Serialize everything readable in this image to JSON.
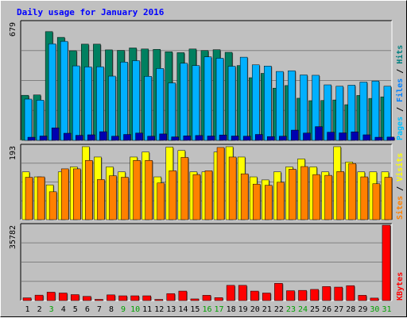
{
  "chart_data": {
    "type": "bar",
    "title": "Daily usage for January 2016",
    "categories": [
      "1",
      "2",
      "3",
      "4",
      "5",
      "6",
      "7",
      "8",
      "9",
      "10",
      "11",
      "12",
      "13",
      "14",
      "15",
      "16",
      "17",
      "18",
      "19",
      "20",
      "21",
      "22",
      "23",
      "24",
      "25",
      "26",
      "27",
      "28",
      "29",
      "30",
      "31"
    ],
    "weekend_days": [
      "3",
      "9",
      "10",
      "16",
      "17",
      "23",
      "24",
      "30",
      "31"
    ],
    "panels": [
      {
        "id": "hits",
        "ymax": 679,
        "ymax_label": "679",
        "legend": [
          {
            "text": "Pages",
            "color": "#00C0FF"
          },
          {
            "text": " / ",
            "color": "#000000"
          },
          {
            "text": "Files",
            "color": "#0080FF"
          },
          {
            "text": " / ",
            "color": "#000000"
          },
          {
            "text": "Hits",
            "color": "#008080"
          }
        ],
        "series": [
          {
            "name": "Hits",
            "color": "#008060",
            "values": [
              259,
              261,
              625,
              592,
              515,
              553,
              553,
              520,
              517,
              531,
              525,
              523,
              509,
              504,
              525,
              516,
              521,
              506,
              430,
              360,
              385,
              300,
              315,
              242,
              228,
              229,
              232,
              205,
              258,
              241,
              250
            ]
          },
          {
            "name": "Files",
            "color": "#00B0FF",
            "values": [
              237,
              231,
              555,
              569,
              428,
              422,
              423,
              369,
              450,
              458,
              368,
              413,
              330,
              443,
              430,
              480,
              472,
              426,
              478,
              434,
              427,
              396,
              400,
              376,
              374,
              319,
              311,
              317,
              335,
              341,
              311
            ]
          },
          {
            "name": "Pages",
            "color": "#0000B0",
            "values": [
              18,
              25,
              72,
              41,
              29,
              32,
              50,
              24,
              34,
              42,
              24,
              37,
              20,
              26,
              28,
              25,
              31,
              25,
              24,
              34,
              22,
              24,
              59,
              42,
              79,
              47,
              43,
              49,
              32,
              18,
              19
            ]
          }
        ]
      },
      {
        "id": "visits",
        "ymax": 193,
        "ymax_label": "193",
        "legend": [
          {
            "text": "Sites",
            "color": "#FF8000"
          },
          {
            "text": " / ",
            "color": "#000000"
          },
          {
            "text": "Visits",
            "color": "#FFFF00"
          }
        ],
        "series": [
          {
            "name": "Visits",
            "color": "#FFFF00",
            "values": [
              125,
              112,
              91,
              125,
              138,
              191,
              164,
              138,
              125,
              164,
              177,
              112,
              190,
              181,
              125,
              125,
              177,
              191,
              164,
              112,
              104,
              125,
              138,
              159,
              138,
              125,
              191,
              151,
              125,
              125,
              125
            ]
          },
          {
            "name": "Sites",
            "color": "#FF8000",
            "values": [
              111,
              112,
              73,
              133,
              133,
              155,
              105,
              115,
              111,
              155,
              155,
              96,
              128,
              163,
              118,
              128,
              189,
              164,
              120,
              93,
              90,
              98,
              132,
              139,
              118,
              116,
              126,
              147,
              112,
              94,
              111
            ]
          }
        ]
      },
      {
        "id": "kbytes",
        "ymax": 35782,
        "ymax_label": "35782",
        "legend": [
          {
            "text": "KBytes",
            "color": "#FF0000"
          }
        ],
        "series": [
          {
            "name": "KBytes",
            "color": "#FF0000",
            "values": [
              1296,
              2585,
              3983,
              3585,
              2822,
              1998,
              570,
              2697,
              2260,
              2260,
              2260,
              550,
              3310,
              4505,
              780,
              2500,
              1400,
              7230,
              7230,
              4500,
              3580,
              8180,
              4680,
              4840,
              5300,
              6665,
              6395,
              7080,
              2500,
              1180,
              35782
            ]
          }
        ]
      }
    ]
  }
}
